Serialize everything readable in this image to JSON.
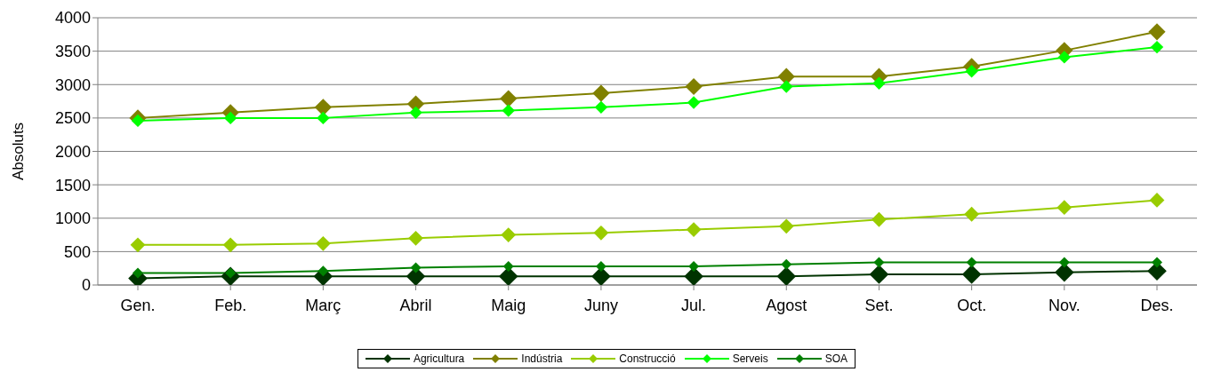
{
  "chart_data": {
    "type": "line",
    "ylabel": "Absoluts",
    "categories": [
      "Gen.",
      "Feb.",
      "Març",
      "Abril",
      "Maig",
      "Juny",
      "Jul.",
      "Agost",
      "Set.",
      "Oct.",
      "Nov.",
      "Des."
    ],
    "series": [
      {
        "name": "Agricultura",
        "color": "#003300",
        "values": [
          100,
          130,
          130,
          130,
          130,
          130,
          130,
          130,
          160,
          160,
          190,
          210
        ]
      },
      {
        "name": "Indústria",
        "color": "#808000",
        "values": [
          2500,
          2580,
          2660,
          2710,
          2790,
          2870,
          2970,
          3120,
          3120,
          3270,
          3510,
          3790
        ]
      },
      {
        "name": "Construcció",
        "color": "#99cc00",
        "values": [
          600,
          600,
          620,
          700,
          750,
          780,
          830,
          880,
          980,
          1060,
          1160,
          1270
        ]
      },
      {
        "name": "Serveis",
        "color": "#00ff00",
        "values": [
          2460,
          2500,
          2500,
          2580,
          2610,
          2660,
          2730,
          2970,
          3020,
          3200,
          3410,
          3560
        ]
      },
      {
        "name": "SOA",
        "color": "#008000",
        "values": [
          180,
          180,
          210,
          260,
          280,
          280,
          280,
          310,
          340,
          340,
          340,
          340
        ]
      }
    ],
    "ylim": [
      0,
      4000
    ],
    "yticks": [
      0,
      500,
      1000,
      1500,
      2000,
      2500,
      3000,
      3500,
      4000
    ],
    "grid": "y",
    "legend": "bottom",
    "marker": "diamond",
    "line_style": "solid"
  }
}
